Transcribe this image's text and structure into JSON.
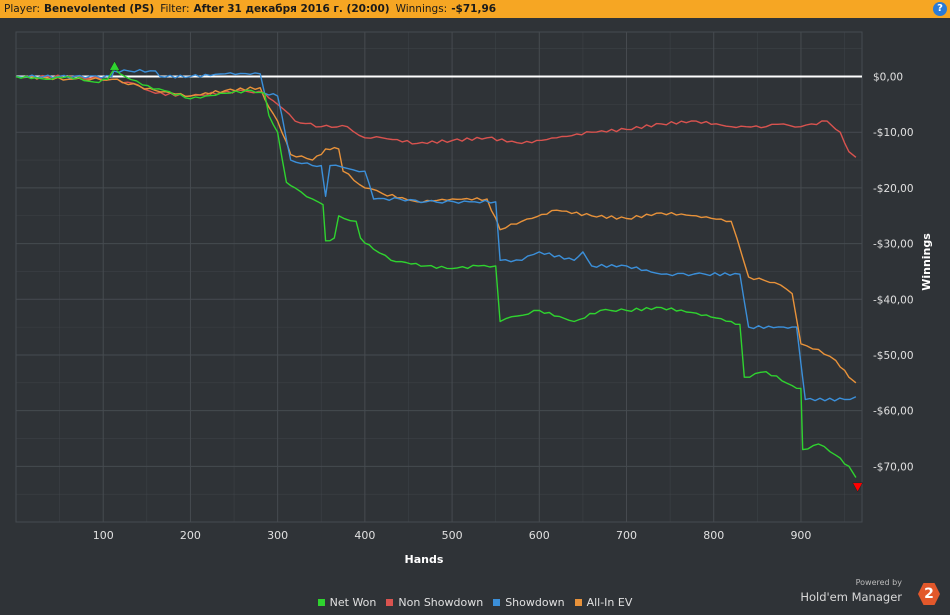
{
  "header": {
    "player_label": "Player:",
    "player_value": "Benevolented (PS)",
    "filter_label": "Filter:",
    "filter_value": "After 31 декабря 2016 г. (20:00)",
    "winnings_label": "Winnings:",
    "winnings_value": "-$71,96",
    "help_icon": "?"
  },
  "branding": {
    "powered_by": "Powered by",
    "product": "Hold'em Manager",
    "logo_text": "2"
  },
  "colors": {
    "background": "#2f3337",
    "grid": "#464b50",
    "zero_line": "#ffffff",
    "net_won": "#2fd32f",
    "non_showdown": "#d9534f",
    "showdown": "#3b8fd9",
    "all_in_ev": "#e8923a",
    "header": "#f6a623"
  },
  "chart_data": {
    "type": "line",
    "xlabel": "Hands",
    "ylabel": "Winnings",
    "xlim": [
      0,
      970
    ],
    "ylim": [
      -80,
      8
    ],
    "x_ticks": [
      100,
      200,
      300,
      400,
      500,
      600,
      700,
      800,
      900
    ],
    "y_ticks": [
      0,
      -10,
      -20,
      -30,
      -40,
      -50,
      -60,
      -70
    ],
    "y_tick_labels": [
      "$0,00",
      "-$10,00",
      "-$20,00",
      "-$30,00",
      "-$40,00",
      "-$50,00",
      "-$60,00",
      "-$70,00"
    ],
    "x_tick_labels": [
      "100",
      "200",
      "300",
      "400",
      "500",
      "600",
      "700",
      "800",
      "900"
    ],
    "grid": true,
    "legend_position": "bottom-center",
    "markers": [
      {
        "type": "max",
        "x": 113,
        "y": 1.5,
        "color": "#2fd32f"
      },
      {
        "type": "min",
        "x": 965,
        "y": -73.5,
        "color": "#ff0000"
      }
    ],
    "series": [
      {
        "name": "Net Won",
        "color": "#2fd32f",
        "points": [
          [
            0,
            0
          ],
          [
            40,
            -0.5
          ],
          [
            60,
            0
          ],
          [
            90,
            -1
          ],
          [
            105,
            -0.5
          ],
          [
            113,
            1.5
          ],
          [
            125,
            0
          ],
          [
            145,
            -1.5
          ],
          [
            170,
            -2.5
          ],
          [
            200,
            -4
          ],
          [
            240,
            -3
          ],
          [
            270,
            -2.5
          ],
          [
            285,
            -3
          ],
          [
            290,
            -7
          ],
          [
            300,
            -10
          ],
          [
            310,
            -19
          ],
          [
            320,
            -20
          ],
          [
            340,
            -22
          ],
          [
            352,
            -23
          ],
          [
            355,
            -29.5
          ],
          [
            365,
            -29
          ],
          [
            370,
            -25
          ],
          [
            390,
            -26
          ],
          [
            395,
            -29
          ],
          [
            410,
            -31
          ],
          [
            430,
            -33
          ],
          [
            470,
            -34
          ],
          [
            500,
            -34.5
          ],
          [
            530,
            -34
          ],
          [
            550,
            -34
          ],
          [
            555,
            -44
          ],
          [
            575,
            -43
          ],
          [
            600,
            -42
          ],
          [
            640,
            -44
          ],
          [
            670,
            -42
          ],
          [
            700,
            -42
          ],
          [
            740,
            -41.5
          ],
          [
            780,
            -42.5
          ],
          [
            820,
            -44
          ],
          [
            830,
            -44.5
          ],
          [
            835,
            -54
          ],
          [
            860,
            -53
          ],
          [
            890,
            -55.5
          ],
          [
            900,
            -56
          ],
          [
            902,
            -67
          ],
          [
            920,
            -66
          ],
          [
            940,
            -68
          ],
          [
            955,
            -70
          ],
          [
            963,
            -72
          ]
        ]
      },
      {
        "name": "Non Showdown",
        "color": "#d9534f",
        "points": [
          [
            0,
            0
          ],
          [
            60,
            0
          ],
          [
            110,
            -0.5
          ],
          [
            140,
            -1.5
          ],
          [
            160,
            -3
          ],
          [
            200,
            -3.5
          ],
          [
            260,
            -2.5
          ],
          [
            285,
            -3
          ],
          [
            300,
            -5
          ],
          [
            320,
            -8
          ],
          [
            350,
            -9
          ],
          [
            380,
            -9
          ],
          [
            400,
            -11
          ],
          [
            420,
            -11
          ],
          [
            460,
            -12
          ],
          [
            500,
            -11.5
          ],
          [
            540,
            -11
          ],
          [
            580,
            -12
          ],
          [
            620,
            -11
          ],
          [
            660,
            -10
          ],
          [
            700,
            -9.5
          ],
          [
            740,
            -8.5
          ],
          [
            780,
            -8
          ],
          [
            820,
            -9
          ],
          [
            860,
            -9
          ],
          [
            880,
            -8.5
          ],
          [
            900,
            -9
          ],
          [
            930,
            -8
          ],
          [
            945,
            -10
          ],
          [
            955,
            -13.5
          ],
          [
            963,
            -14.5
          ]
        ]
      },
      {
        "name": "Showdown",
        "color": "#3b8fd9",
        "points": [
          [
            0,
            0
          ],
          [
            110,
            0
          ],
          [
            112,
            1
          ],
          [
            160,
            1
          ],
          [
            165,
            0
          ],
          [
            200,
            0
          ],
          [
            240,
            0.5
          ],
          [
            280,
            0.5
          ],
          [
            285,
            -3
          ],
          [
            300,
            -3.5
          ],
          [
            315,
            -15
          ],
          [
            340,
            -16
          ],
          [
            350,
            -16
          ],
          [
            355,
            -21.5
          ],
          [
            360,
            -16
          ],
          [
            380,
            -16.5
          ],
          [
            400,
            -17
          ],
          [
            410,
            -22
          ],
          [
            440,
            -22
          ],
          [
            470,
            -22.5
          ],
          [
            520,
            -22.5
          ],
          [
            550,
            -22.5
          ],
          [
            555,
            -33
          ],
          [
            580,
            -33
          ],
          [
            600,
            -31.5
          ],
          [
            640,
            -33
          ],
          [
            650,
            -31.5
          ],
          [
            660,
            -34
          ],
          [
            700,
            -34
          ],
          [
            740,
            -35.5
          ],
          [
            790,
            -35.5
          ],
          [
            830,
            -35.5
          ],
          [
            840,
            -45
          ],
          [
            880,
            -45
          ],
          [
            895,
            -45
          ],
          [
            905,
            -58
          ],
          [
            950,
            -58
          ],
          [
            963,
            -57.5
          ]
        ]
      },
      {
        "name": "All-In EV",
        "color": "#e8923a",
        "points": [
          [
            0,
            0
          ],
          [
            60,
            -0.5
          ],
          [
            110,
            -0.5
          ],
          [
            160,
            -2.5
          ],
          [
            200,
            -3.5
          ],
          [
            240,
            -2.5
          ],
          [
            280,
            -2
          ],
          [
            285,
            -4
          ],
          [
            300,
            -8
          ],
          [
            315,
            -14
          ],
          [
            340,
            -15
          ],
          [
            350,
            -14
          ],
          [
            355,
            -13
          ],
          [
            370,
            -13
          ],
          [
            375,
            -17
          ],
          [
            400,
            -20
          ],
          [
            420,
            -21
          ],
          [
            460,
            -22.5
          ],
          [
            500,
            -22
          ],
          [
            540,
            -22
          ],
          [
            555,
            -27.5
          ],
          [
            580,
            -26
          ],
          [
            620,
            -24
          ],
          [
            660,
            -25
          ],
          [
            700,
            -25.5
          ],
          [
            740,
            -24.5
          ],
          [
            780,
            -25
          ],
          [
            820,
            -26
          ],
          [
            840,
            -36
          ],
          [
            870,
            -37
          ],
          [
            890,
            -39
          ],
          [
            900,
            -48
          ],
          [
            920,
            -49
          ],
          [
            940,
            -51
          ],
          [
            955,
            -54
          ],
          [
            963,
            -55
          ]
        ]
      }
    ]
  }
}
